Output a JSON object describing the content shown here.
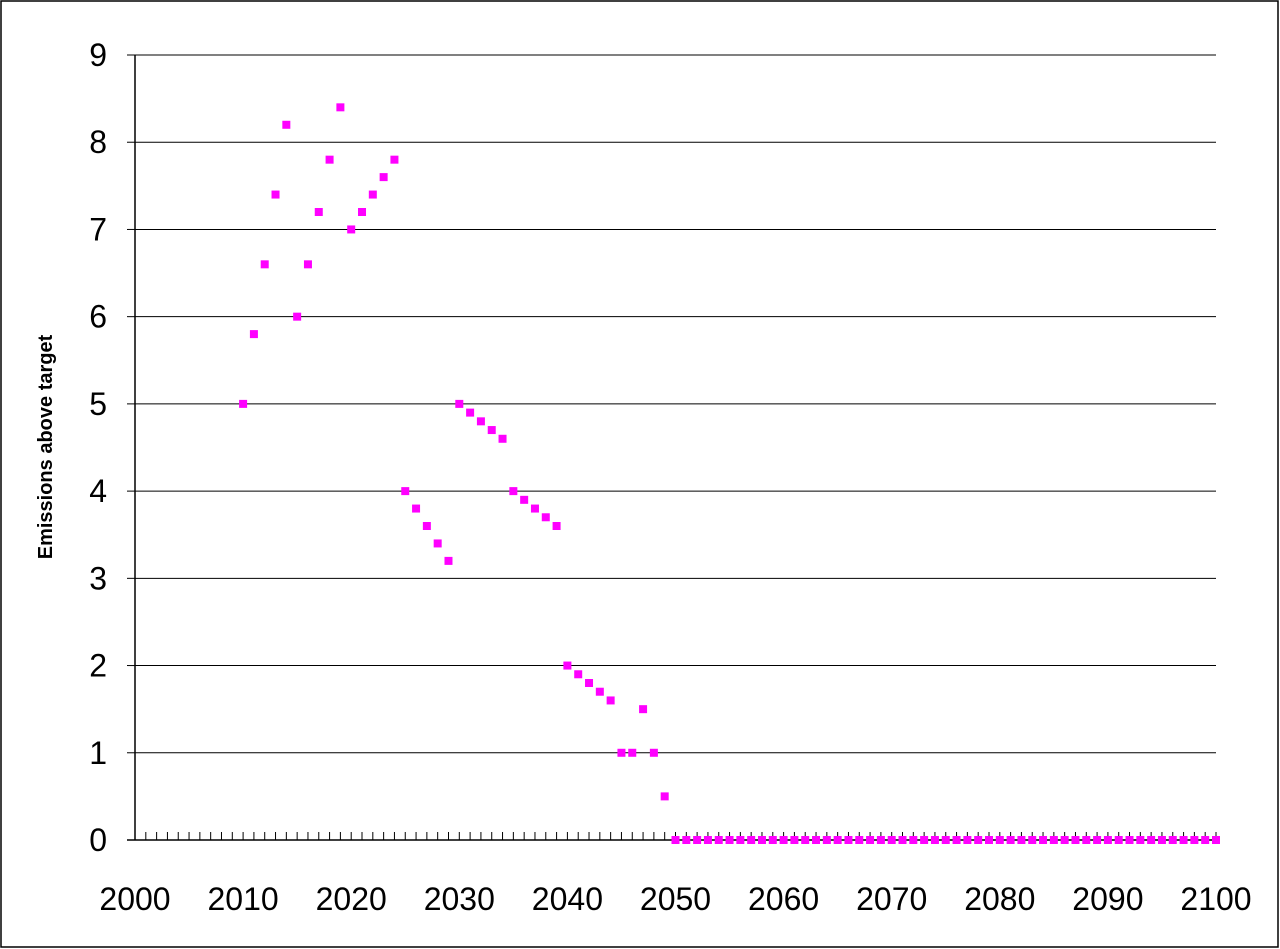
{
  "chart_data": {
    "type": "scatter",
    "title": "",
    "xlabel": "",
    "ylabel": "Emissions above target",
    "xlim": [
      2000,
      2100
    ],
    "ylim": [
      0,
      9
    ],
    "x_ticks": [
      2000,
      2010,
      2020,
      2030,
      2040,
      2050,
      2060,
      2070,
      2080,
      2090,
      2100
    ],
    "y_ticks": [
      0,
      1,
      2,
      3,
      4,
      5,
      6,
      7,
      8,
      9
    ],
    "grid": true,
    "legend": "none",
    "marker": "square",
    "marker_color": "#ff00ff",
    "series": [
      {
        "x": [
          2010,
          2011,
          2012,
          2013,
          2014,
          2015,
          2016,
          2017,
          2018,
          2019,
          2020,
          2021,
          2022,
          2023,
          2024,
          2025,
          2026,
          2027,
          2028,
          2029,
          2030,
          2031,
          2032,
          2033,
          2034,
          2035,
          2036,
          2037,
          2038,
          2039,
          2040,
          2041,
          2042,
          2043,
          2044,
          2045,
          2046,
          2047,
          2048,
          2049,
          2050,
          2051,
          2052,
          2053,
          2054,
          2055,
          2056,
          2057,
          2058,
          2059,
          2060,
          2061,
          2062,
          2063,
          2064,
          2065,
          2066,
          2067,
          2068,
          2069,
          2070,
          2071,
          2072,
          2073,
          2074,
          2075,
          2076,
          2077,
          2078,
          2079,
          2080,
          2081,
          2082,
          2083,
          2084,
          2085,
          2086,
          2087,
          2088,
          2089,
          2090,
          2091,
          2092,
          2093,
          2094,
          2095,
          2096,
          2097,
          2098,
          2099,
          2100
        ],
        "y": [
          5,
          5.8,
          6.6,
          7.4,
          8.2,
          6,
          6.6,
          7.2,
          7.8,
          8.4,
          7,
          7.2,
          7.4,
          7.6,
          7.8,
          4,
          3.8,
          3.6,
          3.4,
          3.2,
          5,
          4.9,
          4.8,
          4.7,
          4.6,
          4,
          3.9,
          3.8,
          3.7,
          3.6,
          2,
          1.9,
          1.8,
          1.7,
          1.6,
          1,
          1,
          1.5,
          1,
          0.5,
          0,
          0,
          0,
          0,
          0,
          0,
          0,
          0,
          0,
          0,
          0,
          0,
          0,
          0,
          0,
          0,
          0,
          0,
          0,
          0,
          0,
          0,
          0,
          0,
          0,
          0,
          0,
          0,
          0,
          0,
          0,
          0,
          0,
          0,
          0,
          0,
          0,
          0,
          0,
          0,
          0,
          0,
          0,
          0,
          0,
          0,
          0,
          0,
          0,
          0,
          0
        ]
      }
    ]
  }
}
